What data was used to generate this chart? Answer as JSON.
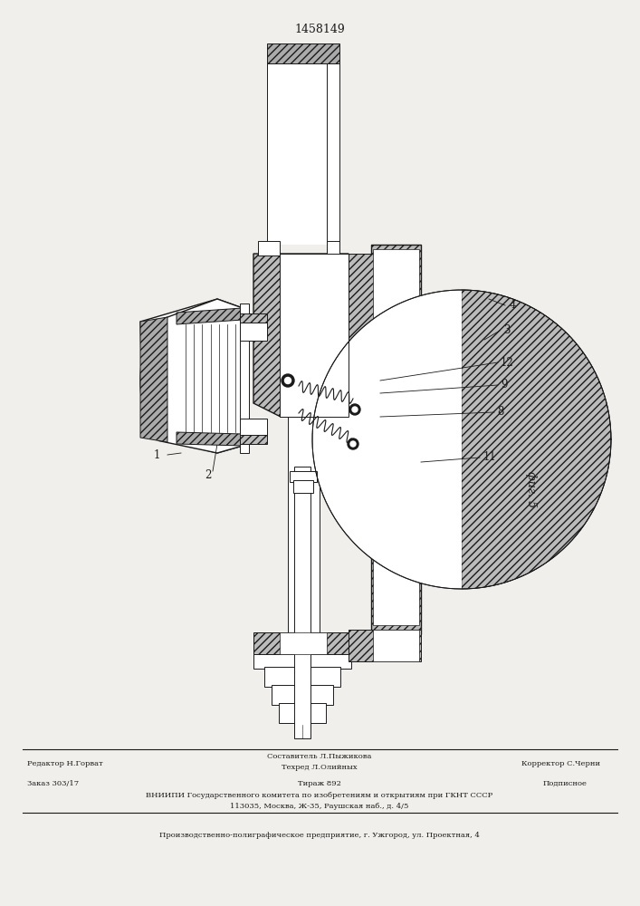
{
  "patent_number": "1458149",
  "fig_label": "фиг. 5",
  "bg_color": "#f0efeb",
  "line_color": "#1a1a1a",
  "footer": {
    "line1_left": "Редактор Н.Горват",
    "line1_center_top": "Составитель Л.Пыжикова",
    "line1_center_bot": "Техред Л.Олийных",
    "line1_right": "Корректор С.Черни",
    "line2_left": "Заказ 303/17",
    "line2_center": "Тираж 892",
    "line2_right": "Подписное",
    "line3": "ВНИИПИ Государственного комитета по изобретениям и открытиям при ГКНТ СССР",
    "line4": "113035, Москва, Ж-35, Раушская наб., д. 4/5",
    "line5": "Производственно-полиграфическое предприятие, г. Ужгород, ул. Проектная, 4"
  }
}
